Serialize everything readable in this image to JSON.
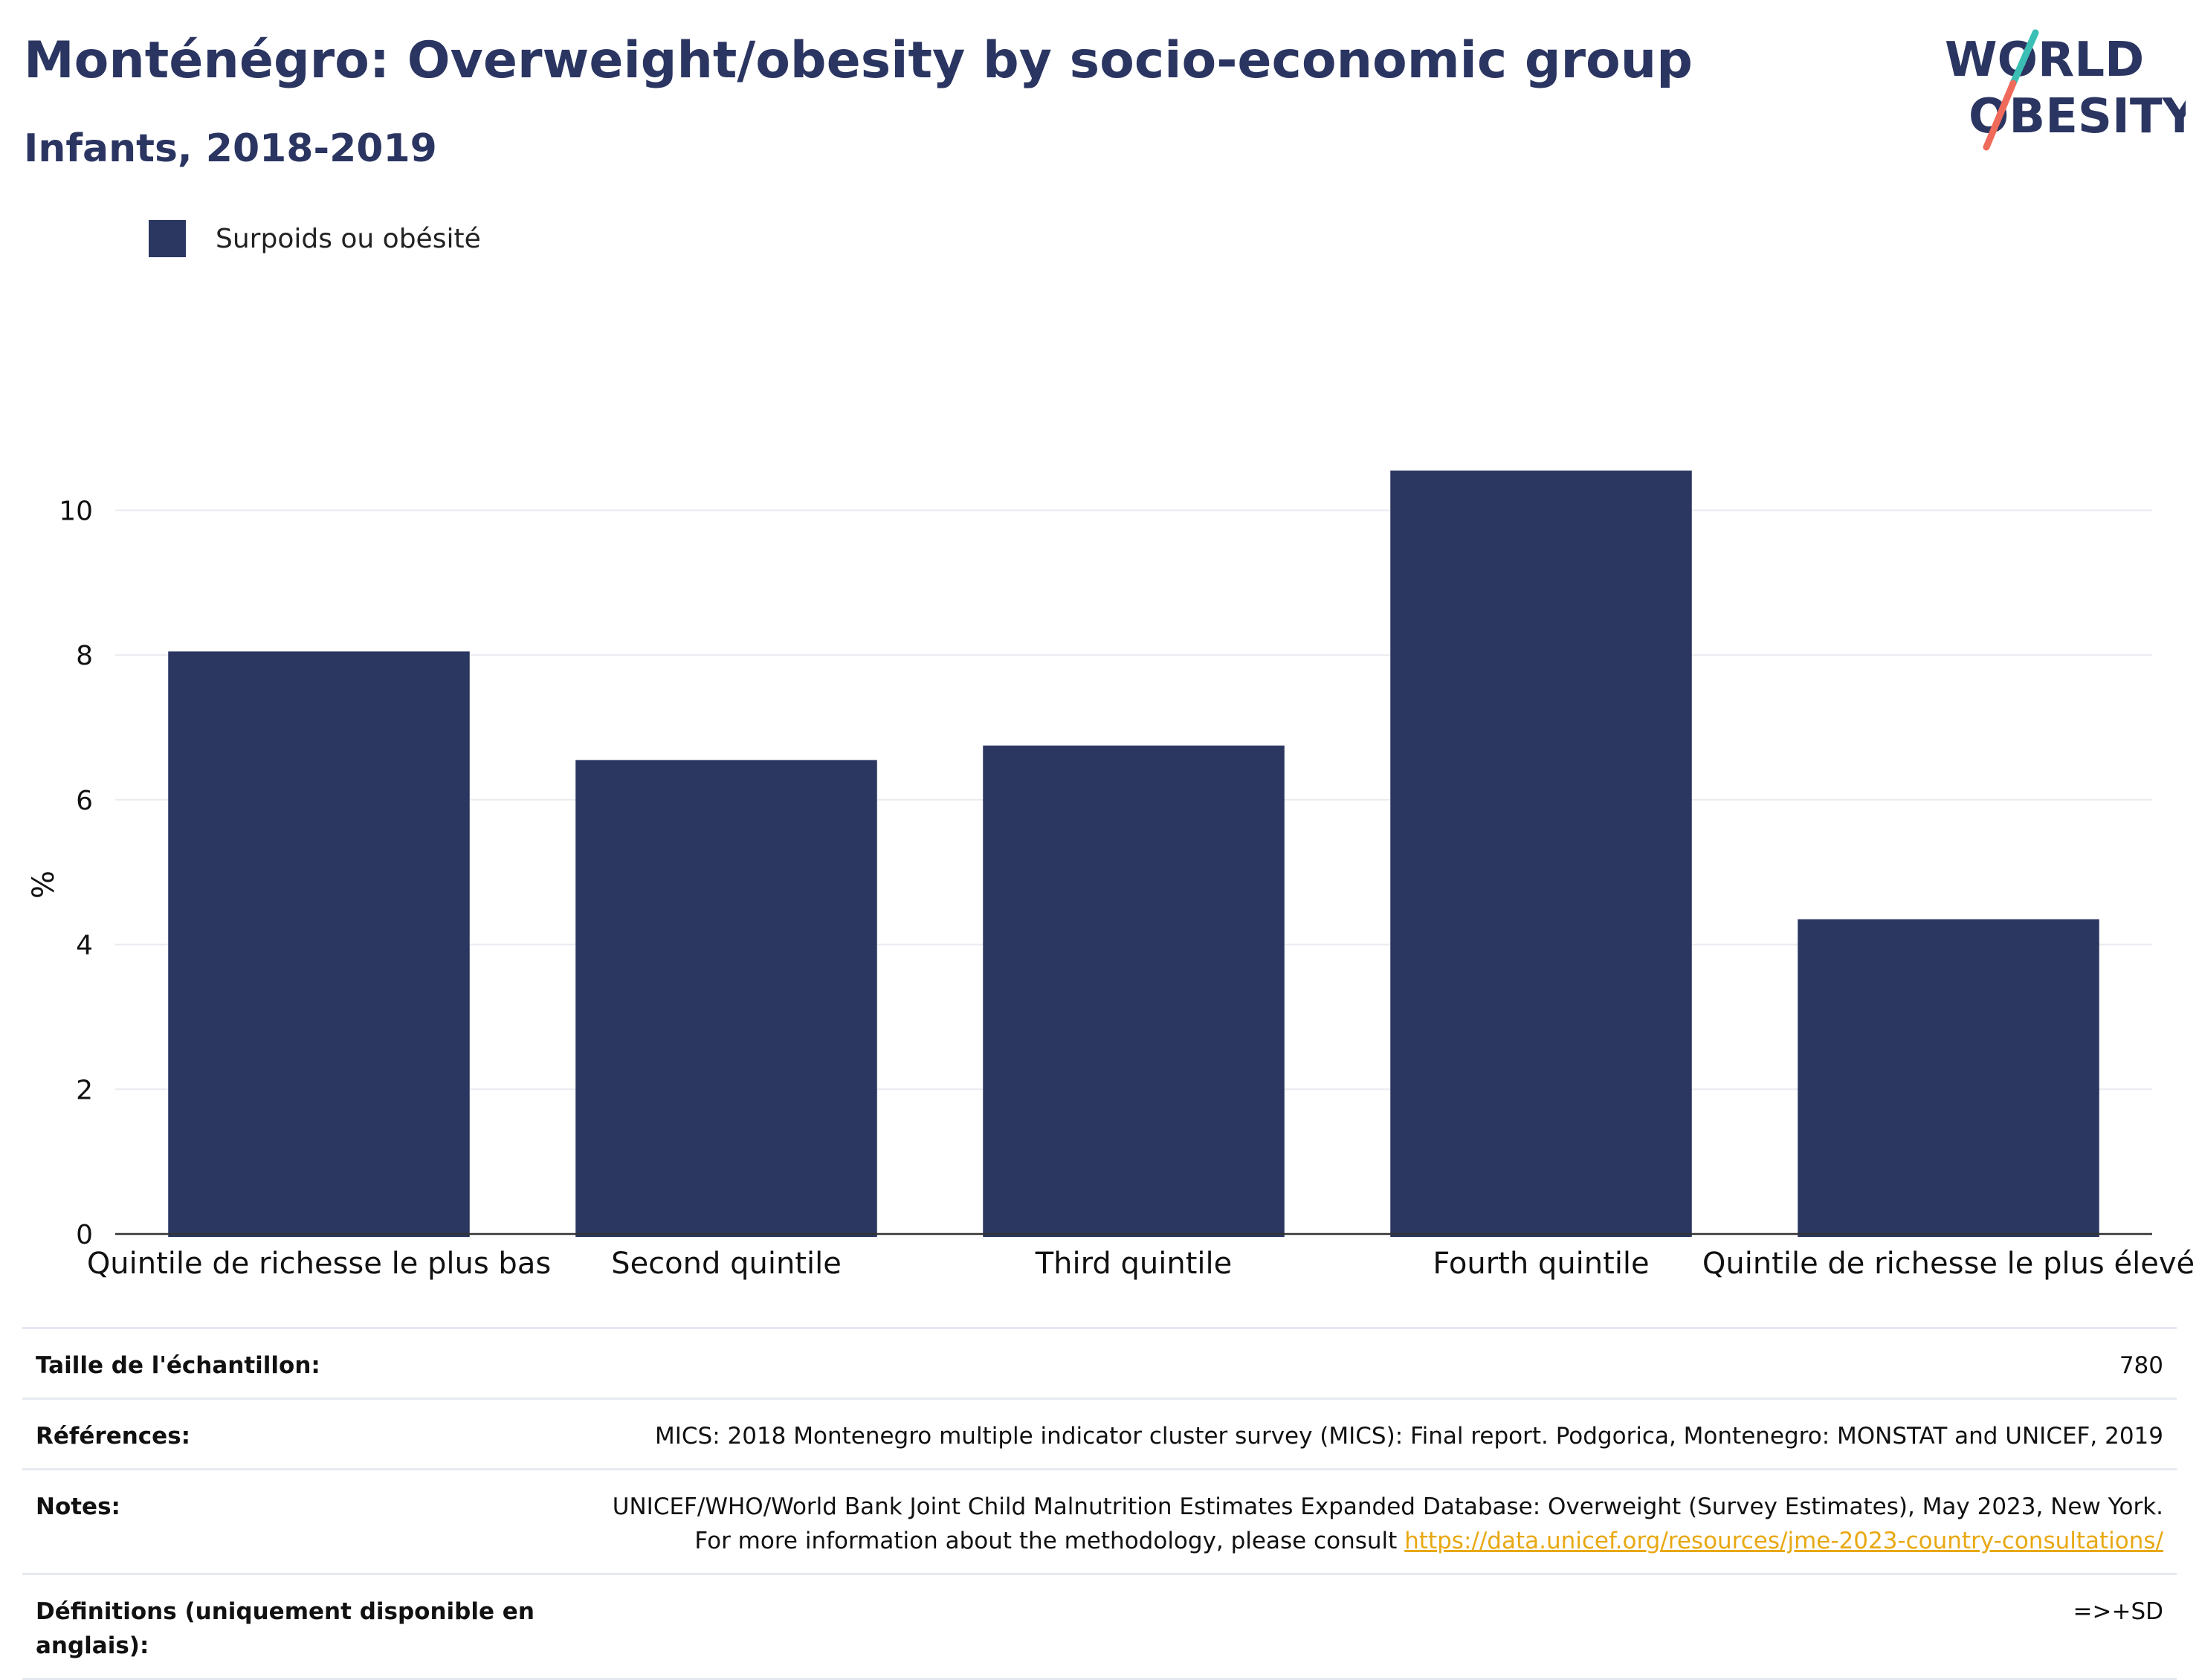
{
  "header": {
    "title": "Monténégro: Overweight/obesity by socio-economic group",
    "subtitle": "Infants, 2018-2019"
  },
  "logo": {
    "line1": "WORLD",
    "line2": "OBESITY",
    "colors": {
      "text": "#2b3561",
      "slash_teal": "#3bbfb4",
      "slash_coral": "#ef6a5a"
    }
  },
  "legend": {
    "label": "Surpoids ou obésité"
  },
  "chart_data": {
    "type": "bar",
    "categories": [
      "Quintile de richesse le plus bas",
      "Second quintile",
      "Third quintile",
      "Fourth quintile",
      "Quintile de richesse le plus élevé"
    ],
    "series": [
      {
        "name": "Surpoids ou obésité",
        "values": [
          8.05,
          6.55,
          6.75,
          10.55,
          4.35
        ],
        "color": "#2b3761"
      }
    ],
    "ylabel": "%",
    "ylim": [
      0,
      11.3
    ],
    "yticks": [
      0,
      2,
      4,
      6,
      8,
      10
    ],
    "grid": true,
    "legend_position": "top-left"
  },
  "table": {
    "rows": [
      {
        "key": "Taille de l'échantillon:",
        "value": "780"
      },
      {
        "key": "Références:",
        "value": "MICS: 2018 Montenegro multiple indicator cluster survey (MICS): Final report. Podgorica, Montenegro: MONSTAT and UNICEF, 2019"
      },
      {
        "key": "Notes:",
        "value": "UNICEF/WHO/World Bank Joint Child Malnutrition Estimates Expanded Database: Overweight (Survey Estimates), May 2023, New York. For more information about the methodology, please consult",
        "link": "https://data.unicef.org/resources/jme-2023-country-consultations/"
      },
      {
        "key": "Définitions (uniquement disponible en anglais):",
        "value": "=>+SD"
      }
    ]
  }
}
